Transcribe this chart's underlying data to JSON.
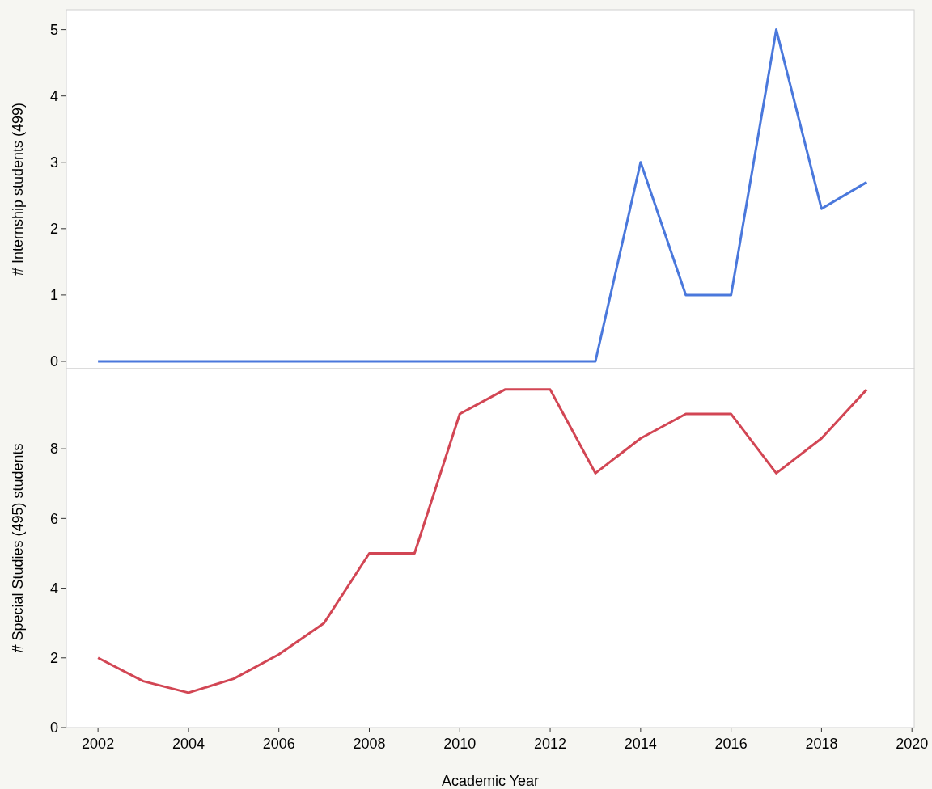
{
  "chart_data": [
    {
      "type": "line",
      "ylabel": "# Internship students (499)",
      "x": [
        2002,
        2003,
        2004,
        2005,
        2006,
        2007,
        2008,
        2009,
        2010,
        2011,
        2012,
        2013,
        2014,
        2015,
        2016,
        2017,
        2018,
        2019
      ],
      "xlim": [
        2001.3,
        2020.05
      ],
      "ylim": [
        -0.11,
        5.3
      ],
      "yticks": [
        0,
        1,
        2,
        3,
        4,
        5
      ],
      "tick_labels": "y",
      "series": [
        {
          "color": "#4a78dc",
          "values": [
            0,
            0,
            0,
            0,
            0,
            0,
            0,
            0,
            0,
            0,
            0,
            0,
            3,
            1,
            1,
            5,
            2.3,
            2.7
          ]
        }
      ]
    },
    {
      "type": "line",
      "ylabel": "# Special Studies (495) students",
      "xlabel": "Academic Year",
      "x": [
        2002,
        2003,
        2004,
        2005,
        2006,
        2007,
        2008,
        2009,
        2010,
        2011,
        2012,
        2013,
        2014,
        2015,
        2016,
        2017,
        2018,
        2019
      ],
      "xlim": [
        2001.3,
        2020.05
      ],
      "xticks": [
        2002,
        2004,
        2006,
        2008,
        2010,
        2012,
        2014,
        2016,
        2018,
        2020
      ],
      "ylim": [
        0,
        10.3
      ],
      "yticks": [
        0,
        2,
        4,
        6,
        8
      ],
      "series": [
        {
          "color": "#d24654",
          "values": [
            2,
            1.33,
            1,
            1.4,
            2.1,
            3,
            5,
            5,
            9,
            9.7,
            9.7,
            7.3,
            8.3,
            9,
            9,
            7.3,
            8.3,
            9.7
          ]
        }
      ]
    }
  ]
}
